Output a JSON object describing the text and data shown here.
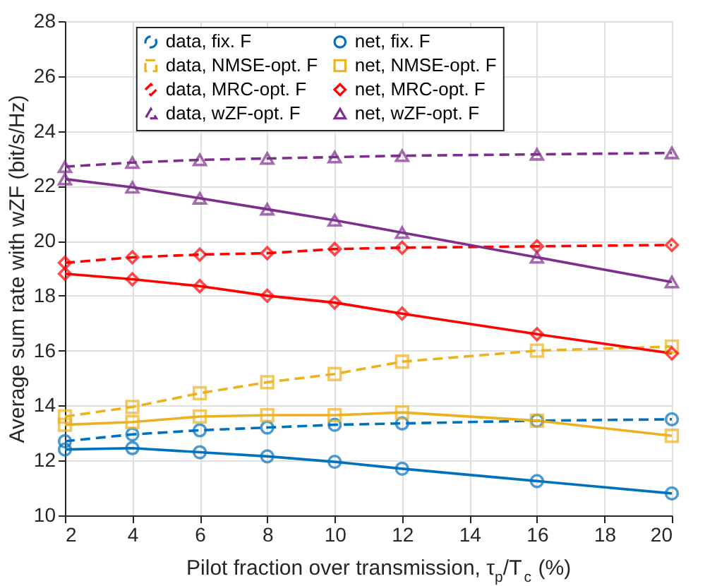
{
  "chart_data": {
    "type": "line",
    "xlabel": "Pilot fraction over transmission, τ$_{p}$/T$_{c}$ (%)",
    "ylabel": "Average sum rate with wZF (bit/s/Hz)",
    "x": [
      2,
      4,
      6,
      8,
      10,
      12,
      16,
      20
    ],
    "xlim": [
      2,
      20
    ],
    "xticks": [
      2,
      4,
      6,
      8,
      10,
      12,
      14,
      16,
      18,
      20
    ],
    "ylim": [
      10,
      28
    ],
    "yticks": [
      10,
      12,
      14,
      16,
      18,
      20,
      22,
      24,
      26,
      28
    ],
    "grid": true,
    "legend": "top",
    "series": [
      {
        "name": "data, fix. F",
        "color": "#0072bd",
        "marker": "circle",
        "line_style": "dashed",
        "values": [
          12.7,
          12.95,
          13.1,
          13.2,
          13.3,
          13.35,
          13.45,
          13.5
        ]
      },
      {
        "name": "net, fix. F",
        "color": "#0072bd",
        "marker": "circle",
        "line_style": "solid",
        "values": [
          12.4,
          12.45,
          12.3,
          12.15,
          11.95,
          11.7,
          11.25,
          10.8
        ]
      },
      {
        "name": "data, NMSE-opt. F",
        "color": "#edb120",
        "marker": "square",
        "line_style": "dashed",
        "values": [
          13.6,
          13.95,
          14.45,
          14.85,
          15.15,
          15.6,
          16.0,
          16.15
        ]
      },
      {
        "name": "net, NMSE-opt. F",
        "color": "#edb120",
        "marker": "square",
        "line_style": "solid",
        "values": [
          13.3,
          13.4,
          13.6,
          13.65,
          13.65,
          13.75,
          13.45,
          12.9
        ]
      },
      {
        "name": "data, MRC-opt. F",
        "color": "#ff0000",
        "marker": "diamond",
        "line_style": "dashed",
        "values": [
          19.2,
          19.4,
          19.5,
          19.55,
          19.7,
          19.75,
          19.8,
          19.85
        ]
      },
      {
        "name": "net, MRC-opt. F",
        "color": "#ff0000",
        "marker": "diamond",
        "line_style": "solid",
        "values": [
          18.8,
          18.6,
          18.35,
          18.0,
          17.75,
          17.35,
          16.6,
          15.9
        ]
      },
      {
        "name": "data, wZF-opt. F",
        "color": "#7e2f8e",
        "marker": "triangle",
        "line_style": "dashed",
        "values": [
          22.7,
          22.85,
          22.95,
          23.0,
          23.05,
          23.1,
          23.15,
          23.2
        ]
      },
      {
        "name": "net, wZF-opt. F",
        "color": "#7e2f8e",
        "marker": "triangle",
        "line_style": "solid",
        "values": [
          22.25,
          21.95,
          21.55,
          21.15,
          20.75,
          20.3,
          19.4,
          18.5
        ]
      }
    ]
  }
}
